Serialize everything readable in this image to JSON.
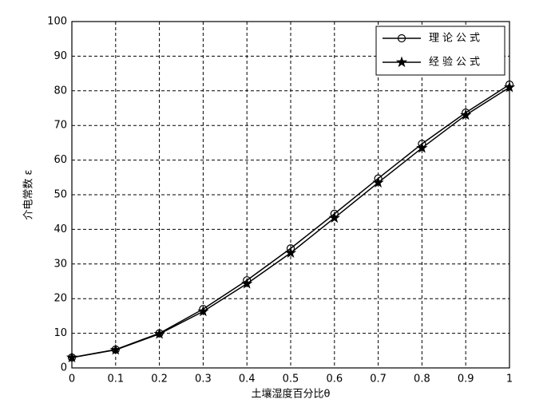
{
  "chart_data": {
    "type": "line",
    "x_label": "土壤湿度百分比θ",
    "y_label": "介电常数 ε",
    "x": [
      0,
      0.1,
      0.2,
      0.3,
      0.4,
      0.5,
      0.6,
      0.7,
      0.8,
      0.9,
      1
    ],
    "series": [
      {
        "name": "理论公式",
        "color": "#000000",
        "marker": "circle",
        "values": [
          3,
          5.3,
          10,
          17,
          25.3,
          34.5,
          44.5,
          54.7,
          64.7,
          73.7,
          81.8
        ]
      },
      {
        "name": "经验公式",
        "color": "#000000",
        "marker": "star",
        "values": [
          3,
          5.2,
          9.8,
          16.3,
          24.3,
          33.2,
          43.3,
          53.5,
          63.5,
          73,
          81
        ]
      }
    ],
    "xlim": [
      0,
      1
    ],
    "xticks": [
      0,
      0.1,
      0.2,
      0.3,
      0.4,
      0.5,
      0.6,
      0.7,
      0.8,
      0.9,
      1
    ],
    "ylim": [
      0,
      100
    ],
    "yticks": [
      0,
      10,
      20,
      30,
      40,
      50,
      60,
      70,
      80,
      90,
      100
    ],
    "grid": true,
    "legend": "upper right"
  }
}
